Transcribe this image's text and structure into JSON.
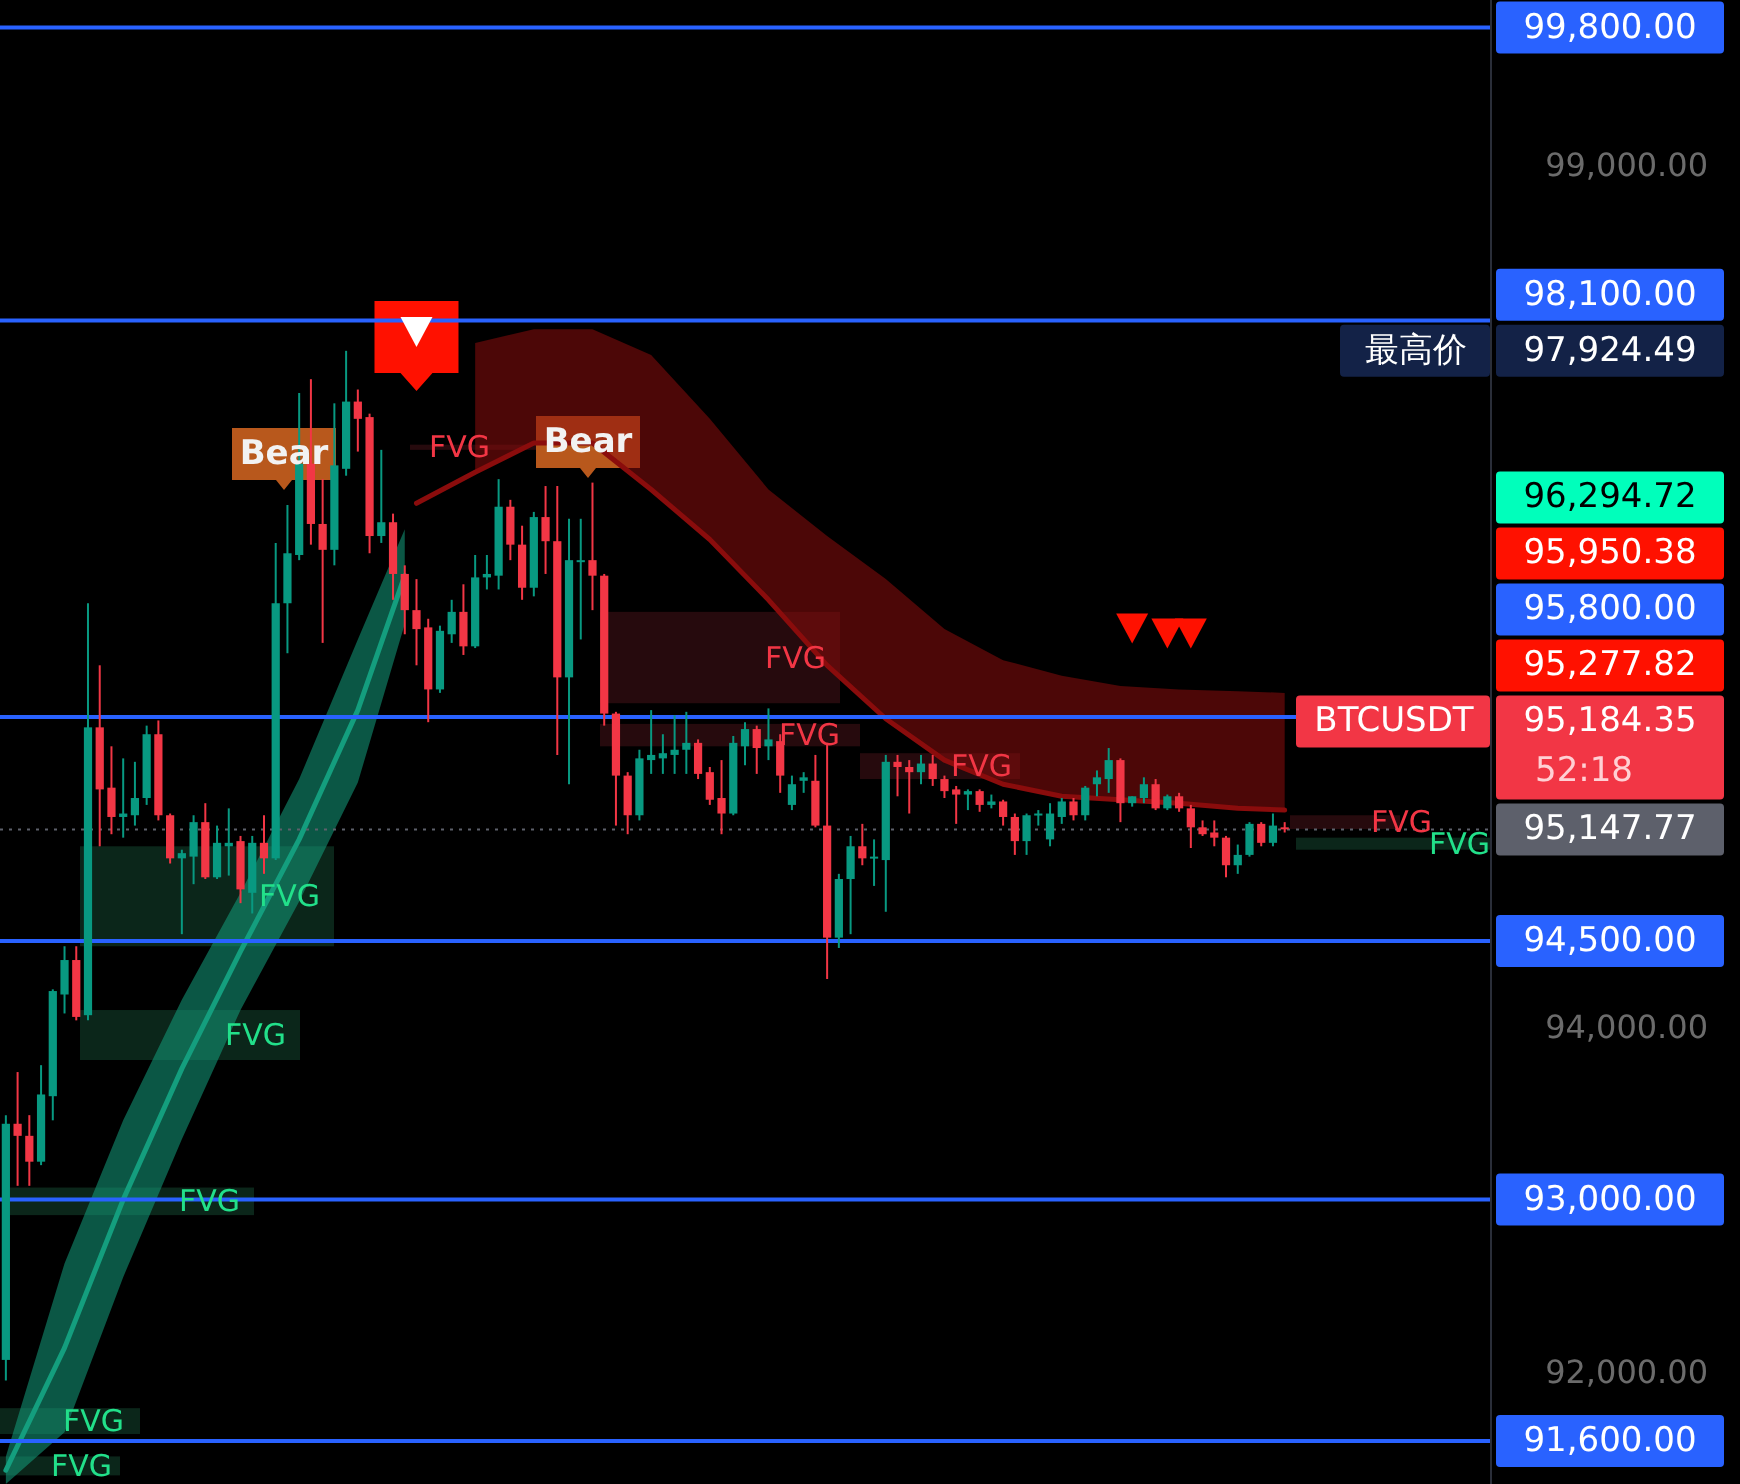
{
  "chart_data": {
    "type": "candlestick",
    "tick_labels": "y",
    "grid": false,
    "categories": [
      null,
      null,
      null,
      null,
      null,
      null,
      null,
      null,
      null,
      null,
      null,
      null,
      null,
      null,
      null,
      null,
      null,
      null,
      null,
      null,
      null,
      null,
      null,
      null,
      null,
      null,
      null,
      null,
      null,
      null,
      null,
      null,
      null,
      null,
      null,
      null,
      null,
      null,
      null,
      null,
      null,
      null,
      null,
      null,
      null,
      null,
      null,
      null,
      null,
      null,
      null,
      null,
      null,
      null,
      null,
      null,
      null,
      null,
      null,
      null,
      null,
      null,
      null,
      null,
      null,
      null,
      null,
      null,
      null,
      null,
      null,
      null,
      null,
      null,
      null,
      null,
      null,
      null,
      null,
      null,
      null,
      null,
      null,
      null,
      null,
      null,
      null,
      null,
      null,
      null,
      null,
      null,
      null,
      null,
      null,
      null,
      null,
      null,
      null,
      null,
      null,
      null,
      null,
      null,
      null,
      null,
      null,
      null,
      null,
      null,
      null,
      null,
      null,
      null,
      null,
      null,
      null,
      null,
      null,
      null,
      null,
      null,
      null,
      null,
      null,
      null,
      null
    ],
    "ohlc": [
      [
        92070,
        93490,
        91950,
        93440
      ],
      [
        93440,
        93740,
        93080,
        93370
      ],
      [
        93370,
        93490,
        93080,
        93220
      ],
      [
        93220,
        93780,
        93200,
        93610
      ],
      [
        93600,
        94220,
        93460,
        94210
      ],
      [
        94190,
        94470,
        94080,
        94390
      ],
      [
        94390,
        94470,
        94040,
        94060
      ],
      [
        94070,
        96460,
        94040,
        95740
      ],
      [
        95740,
        96100,
        95050,
        95380
      ],
      [
        95390,
        95630,
        95120,
        95220
      ],
      [
        95220,
        95560,
        95100,
        95240
      ],
      [
        95230,
        95540,
        95170,
        95330
      ],
      [
        95330,
        95750,
        95290,
        95700
      ],
      [
        95700,
        95780,
        95200,
        95230
      ],
      [
        95230,
        95240,
        94950,
        94980
      ],
      [
        94980,
        95030,
        94540,
        95010
      ],
      [
        94990,
        95230,
        94830,
        95190
      ],
      [
        95190,
        95300,
        94860,
        94870
      ],
      [
        94870,
        95170,
        94860,
        95070
      ],
      [
        95050,
        95270,
        94880,
        95070
      ],
      [
        95080,
        95110,
        94720,
        94800
      ],
      [
        94780,
        95110,
        94660,
        95070
      ],
      [
        95070,
        95230,
        94890,
        94980
      ],
      [
        94980,
        96810,
        94970,
        96460
      ],
      [
        96460,
        97030,
        96170,
        96750
      ],
      [
        96740,
        97680,
        96710,
        97270
      ],
      [
        97270,
        97760,
        96800,
        96920
      ],
      [
        96920,
        97180,
        96230,
        96770
      ],
      [
        96770,
        97620,
        96680,
        97260
      ],
      [
        97240,
        97924.49,
        97200,
        97630
      ],
      [
        97630,
        97700,
        97340,
        97530
      ],
      [
        97540,
        97560,
        96750,
        96850
      ],
      [
        96850,
        97350,
        96810,
        96930
      ],
      [
        96930,
        96980,
        96480,
        96630
      ],
      [
        96630,
        96680,
        96280,
        96420
      ],
      [
        96420,
        96600,
        96100,
        96310
      ],
      [
        96320,
        96370,
        95770,
        95960
      ],
      [
        95960,
        96330,
        95940,
        96300
      ],
      [
        96280,
        96480,
        96230,
        96410
      ],
      [
        96410,
        96570,
        96160,
        96210
      ],
      [
        96210,
        96740,
        96200,
        96610
      ],
      [
        96610,
        96740,
        96540,
        96630
      ],
      [
        96620,
        97180,
        96540,
        97020
      ],
      [
        97020,
        97060,
        96710,
        96800
      ],
      [
        96800,
        96910,
        96480,
        96550
      ],
      [
        96550,
        96990,
        96500,
        96960
      ],
      [
        96960,
        97140,
        96630,
        96820
      ],
      [
        96820,
        97140,
        95580,
        96030
      ],
      [
        96030,
        96950,
        95410,
        96710
      ],
      [
        96700,
        96950,
        96250,
        96710
      ],
      [
        96710,
        97160,
        96420,
        96620
      ],
      [
        96620,
        96630,
        95750,
        95820
      ],
      [
        95820,
        95830,
        95170,
        95460
      ],
      [
        95460,
        95480,
        95120,
        95230
      ],
      [
        95230,
        95610,
        95200,
        95560
      ],
      [
        95550,
        95840,
        95470,
        95580
      ],
      [
        95560,
        95700,
        95470,
        95590
      ],
      [
        95580,
        95810,
        95470,
        95610
      ],
      [
        95610,
        95830,
        95470,
        95650
      ],
      [
        95650,
        95670,
        95440,
        95470
      ],
      [
        95480,
        95510,
        95290,
        95320
      ],
      [
        95330,
        95550,
        95120,
        95240
      ],
      [
        95240,
        95690,
        95230,
        95650
      ],
      [
        95630,
        95770,
        95520,
        95730
      ],
      [
        95730,
        95750,
        95470,
        95620
      ],
      [
        95630,
        95850,
        95550,
        95670
      ],
      [
        95660,
        95700,
        95360,
        95460
      ],
      [
        95290,
        95460,
        95260,
        95410
      ],
      [
        95430,
        95480,
        95360,
        95450
      ],
      [
        95430,
        95580,
        95160,
        95170
      ],
      [
        95170,
        95650,
        94280,
        94520
      ],
      [
        94520,
        94890,
        94460,
        94860
      ],
      [
        94860,
        95110,
        94540,
        95050
      ],
      [
        95050,
        95180,
        94940,
        94980
      ],
      [
        94980,
        95090,
        94820,
        94990
      ],
      [
        94970,
        95580,
        94670,
        95540
      ],
      [
        95540,
        95580,
        95340,
        95510
      ],
      [
        95510,
        95550,
        95240,
        95480
      ],
      [
        95480,
        95580,
        95410,
        95530
      ],
      [
        95530,
        95580,
        95400,
        95440
      ],
      [
        95440,
        95460,
        95330,
        95370
      ],
      [
        95380,
        95400,
        95180,
        95350
      ],
      [
        95350,
        95380,
        95260,
        95370
      ],
      [
        95370,
        95380,
        95250,
        95290
      ],
      [
        95290,
        95350,
        95270,
        95310
      ],
      [
        95310,
        95320,
        95170,
        95220
      ],
      [
        95220,
        95240,
        95000,
        95080
      ],
      [
        95080,
        95240,
        95000,
        95230
      ],
      [
        95230,
        95260,
        95170,
        95240
      ],
      [
        95090,
        95300,
        95050,
        95240
      ],
      [
        95220,
        95330,
        95180,
        95310
      ],
      [
        95310,
        95330,
        95200,
        95230
      ],
      [
        95230,
        95400,
        95200,
        95390
      ],
      [
        95410,
        95490,
        95340,
        95450
      ],
      [
        95440,
        95620,
        95360,
        95550
      ],
      [
        95550,
        95560,
        95190,
        95300
      ],
      [
        95300,
        95340,
        95280,
        95340
      ],
      [
        95330,
        95450,
        95300,
        95410
      ],
      [
        95410,
        95440,
        95260,
        95270
      ],
      [
        95270,
        95350,
        95260,
        95340
      ],
      [
        95340,
        95360,
        95250,
        95270
      ],
      [
        95270,
        95290,
        95040,
        95160
      ],
      [
        95160,
        95200,
        95110,
        95120
      ],
      [
        95130,
        95200,
        95050,
        95100
      ],
      [
        95100,
        95110,
        94870,
        94940
      ],
      [
        94940,
        95060,
        94890,
        95000
      ],
      [
        95000,
        95190,
        94990,
        95180
      ],
      [
        95180,
        95190,
        95050,
        95070
      ],
      [
        95070,
        95240,
        95050,
        95170
      ],
      [
        95160,
        95190,
        95130,
        95150
      ],
      null,
      null,
      null,
      null,
      null,
      null,
      null,
      null,
      null,
      null,
      null,
      null,
      null,
      null,
      null,
      null,
      null
    ],
    "series": [
      {
        "type": "line",
        "color": "#149e7e",
        "values": [
          91430,
          null,
          null,
          null,
          null,
          92140,
          null,
          null,
          null,
          null,
          93000,
          null,
          null,
          null,
          null,
          93760,
          null,
          null,
          null,
          null,
          94440,
          null,
          null,
          null,
          null,
          95090,
          null,
          null,
          null,
          null,
          95840,
          null,
          null,
          null,
          96620,
          null,
          null,
          null,
          null,
          null,
          null,
          null,
          null,
          null,
          null,
          null,
          null,
          null,
          null,
          null,
          null,
          null,
          null,
          null,
          null,
          null,
          null,
          null,
          null,
          null,
          null,
          null,
          null,
          null,
          null,
          null,
          null,
          null,
          null,
          null,
          null,
          null,
          null,
          null,
          null,
          null,
          null,
          null,
          null,
          null,
          null,
          null,
          null,
          null,
          null,
          null,
          null,
          null,
          null,
          null,
          null,
          null,
          null,
          null,
          null,
          null,
          null,
          null,
          null,
          null,
          null,
          null,
          null,
          null,
          null,
          null,
          null,
          null,
          null,
          null,
          null,
          null,
          null,
          null,
          null,
          null,
          null,
          null,
          null,
          null,
          null,
          null,
          null,
          null,
          null,
          null,
          null
        ],
        "lower": [
          91350,
          null,
          null,
          null,
          null,
          91650,
          null,
          null,
          null,
          null,
          92550,
          null,
          null,
          null,
          null,
          93350,
          null,
          null,
          null,
          null,
          94100,
          null,
          null,
          null,
          null,
          94730,
          null,
          null,
          null,
          null,
          95420,
          null,
          null,
          null,
          96340,
          null,
          null,
          null,
          null,
          null,
          null,
          null,
          null,
          null,
          null,
          null,
          null,
          null,
          null,
          null,
          null,
          null,
          null,
          null,
          null,
          null,
          null,
          null,
          null,
          null,
          null,
          null,
          null,
          null,
          null,
          null,
          null,
          null,
          null,
          null,
          null,
          null,
          null,
          null,
          null,
          null,
          null,
          null,
          null,
          null,
          null,
          null,
          null,
          null,
          null,
          null,
          null,
          null,
          null,
          null,
          null,
          null,
          null,
          null,
          null,
          null,
          null,
          null,
          null,
          null,
          null,
          null,
          null,
          null,
          null,
          null,
          null,
          null,
          null,
          null,
          null,
          null,
          null,
          null,
          null,
          null,
          null,
          null,
          null,
          null,
          null,
          null,
          null,
          null,
          null,
          null,
          null
        ],
        "upper": [
          91510,
          null,
          null,
          null,
          null,
          92630,
          null,
          null,
          null,
          null,
          93460,
          null,
          null,
          null,
          null,
          94160,
          null,
          null,
          null,
          null,
          94780,
          null,
          null,
          null,
          null,
          95440,
          null,
          null,
          null,
          null,
          96250,
          null,
          null,
          null,
          96890,
          null,
          null,
          null,
          null,
          null,
          null,
          null,
          null,
          null,
          null,
          null,
          null,
          null,
          null,
          null,
          null,
          null,
          null,
          null,
          null,
          null,
          null,
          null,
          null,
          null,
          null,
          null,
          null,
          null,
          null,
          null,
          null,
          null,
          null,
          null,
          null,
          null,
          null,
          null,
          null,
          null,
          null,
          null,
          null,
          null,
          null,
          null,
          null,
          null,
          null,
          null,
          null,
          null,
          null,
          null,
          null,
          null,
          null,
          null,
          null,
          null,
          null,
          null,
          null,
          null,
          null,
          null,
          null,
          null,
          null,
          null,
          null,
          null,
          null,
          null,
          null,
          null,
          null,
          null,
          null,
          null,
          null,
          null,
          null,
          null,
          null,
          null,
          null,
          null,
          null,
          null,
          null
        ]
      },
      {
        "type": "line",
        "color": "#8a0c0c",
        "values": [
          null,
          null,
          null,
          null,
          null,
          null,
          null,
          null,
          null,
          null,
          null,
          null,
          null,
          null,
          null,
          null,
          null,
          null,
          null,
          null,
          null,
          null,
          null,
          null,
          null,
          null,
          null,
          null,
          null,
          null,
          null,
          null,
          null,
          null,
          null,
          97040,
          null,
          null,
          null,
          null,
          97220,
          null,
          null,
          null,
          null,
          97390,
          null,
          null,
          null,
          null,
          97390,
          null,
          null,
          null,
          null,
          97120,
          null,
          null,
          null,
          null,
          96830,
          null,
          null,
          null,
          null,
          96480,
          null,
          null,
          null,
          null,
          96100,
          null,
          null,
          null,
          null,
          95790,
          null,
          null,
          null,
          null,
          95550,
          null,
          null,
          null,
          null,
          95410,
          null,
          null,
          null,
          null,
          95340,
          null,
          null,
          null,
          null,
          95320,
          null,
          null,
          null,
          null,
          95300,
          null,
          null,
          null,
          null,
          95270,
          null,
          null,
          null,
          95260,
          null,
          null,
          null,
          null,
          null,
          null,
          null,
          null,
          null,
          null,
          null,
          null,
          null,
          null,
          null,
          null,
          null
        ],
        "lower": [
          null,
          null,
          null,
          null,
          null,
          null,
          null,
          null,
          null,
          null,
          null,
          null,
          null,
          null,
          null,
          null,
          null,
          null,
          null,
          null,
          null,
          null,
          null,
          null,
          null,
          null,
          null,
          null,
          null,
          null,
          null,
          null,
          null,
          null,
          null,
          null,
          null,
          null,
          null,
          null,
          97220,
          null,
          null,
          null,
          null,
          97390,
          null,
          null,
          null,
          null,
          97390,
          null,
          null,
          null,
          null,
          97120,
          null,
          null,
          null,
          null,
          96830,
          null,
          null,
          null,
          null,
          96480,
          null,
          null,
          null,
          null,
          96100,
          null,
          null,
          null,
          null,
          95790,
          null,
          null,
          null,
          null,
          95550,
          null,
          null,
          null,
          null,
          95410,
          null,
          null,
          null,
          null,
          95340,
          null,
          null,
          null,
          null,
          95320,
          null,
          null,
          null,
          null,
          95300,
          null,
          null,
          null,
          null,
          95270,
          null,
          null,
          null,
          95260,
          null,
          null,
          null,
          null,
          null,
          null,
          null,
          null,
          null,
          null,
          null,
          null,
          null,
          null,
          null,
          null,
          null
        ],
        "upper": [
          null,
          null,
          null,
          null,
          null,
          null,
          null,
          null,
          null,
          null,
          null,
          null,
          null,
          null,
          null,
          null,
          null,
          null,
          null,
          null,
          null,
          null,
          null,
          null,
          null,
          null,
          null,
          null,
          null,
          null,
          null,
          null,
          null,
          null,
          null,
          null,
          null,
          null,
          null,
          null,
          97970,
          null,
          null,
          null,
          null,
          98050,
          null,
          null,
          null,
          null,
          98050,
          null,
          null,
          null,
          null,
          97900,
          null,
          null,
          null,
          null,
          97530,
          null,
          null,
          null,
          null,
          97120,
          null,
          null,
          null,
          null,
          96850,
          null,
          null,
          null,
          null,
          96600,
          null,
          null,
          null,
          null,
          96310,
          null,
          null,
          null,
          null,
          96130,
          null,
          null,
          null,
          null,
          96040,
          null,
          null,
          null,
          null,
          95980,
          null,
          null,
          null,
          null,
          95960,
          null,
          null,
          null,
          null,
          95950,
          null,
          null,
          null,
          95940,
          null,
          null,
          null,
          null,
          null,
          null,
          null,
          null,
          null,
          null,
          null,
          null,
          null,
          null,
          null,
          null,
          null
        ]
      },
      {
        "type": "scatter",
        "marker": "triangle",
        "color": "#ffffff",
        "values": [
          null,
          null,
          null,
          null,
          null,
          null,
          null,
          null,
          null,
          null,
          null,
          null,
          null,
          null,
          null,
          null,
          null,
          null,
          null,
          null,
          null,
          null,
          null,
          null,
          null,
          null,
          null,
          null,
          null,
          null,
          null,
          null,
          null,
          null,
          null,
          98040,
          null,
          null,
          null,
          null,
          null,
          null,
          null,
          null,
          null,
          null,
          null,
          null,
          null,
          null,
          null,
          null,
          null,
          null,
          null,
          null,
          null,
          null,
          null,
          null,
          null,
          null,
          null,
          null,
          null,
          null,
          null,
          null,
          null,
          null,
          null,
          null,
          null,
          null,
          null,
          null,
          null,
          null,
          null,
          null,
          null,
          null,
          null,
          null,
          null,
          null,
          null,
          null,
          null,
          null,
          null,
          null,
          null,
          null,
          null,
          null,
          null,
          null,
          null,
          null,
          null,
          null,
          null,
          null,
          null,
          null,
          null,
          null,
          null,
          null,
          null,
          null,
          null,
          null,
          null,
          null,
          null,
          null,
          null,
          null,
          null,
          null,
          null,
          null,
          null,
          null,
          null
        ]
      },
      {
        "type": "scatter",
        "marker": "triangle",
        "color": "#ff1100",
        "values": [
          null,
          null,
          null,
          null,
          null,
          null,
          null,
          null,
          null,
          null,
          null,
          null,
          null,
          null,
          null,
          null,
          null,
          null,
          null,
          null,
          null,
          null,
          null,
          null,
          null,
          null,
          null,
          null,
          null,
          null,
          null,
          null,
          null,
          null,
          null,
          null,
          null,
          null,
          null,
          null,
          null,
          null,
          null,
          null,
          null,
          null,
          null,
          null,
          null,
          null,
          null,
          null,
          null,
          null,
          null,
          null,
          null,
          null,
          null,
          null,
          null,
          null,
          null,
          null,
          null,
          null,
          null,
          null,
          null,
          null,
          null,
          null,
          null,
          null,
          null,
          null,
          null,
          null,
          null,
          null,
          null,
          null,
          null,
          null,
          null,
          null,
          null,
          null,
          null,
          null,
          null,
          null,
          null,
          null,
          null,
          null,
          96320,
          null,
          null,
          96290,
          null,
          96290,
          null,
          null,
          null,
          null,
          null,
          null,
          null,
          null,
          null,
          null,
          null,
          null,
          null,
          null,
          null,
          null,
          null,
          null,
          null,
          null,
          null,
          null,
          null,
          null,
          null
        ]
      }
    ],
    "ylim": [
      91350,
      99960
    ],
    "yticks": [
      {
        "value": 92000,
        "label": "92,000.00"
      },
      {
        "value": 94000,
        "label": "94,000.00"
      },
      {
        "value": 99000,
        "label": "99,000.00"
      }
    ],
    "ref_lines": [
      {
        "axis": "y",
        "value": 99800,
        "label": "99,800.00",
        "color": "#2962ff"
      },
      {
        "axis": "y",
        "value": 98100,
        "label": "98,100.00",
        "color": "#2962ff"
      },
      {
        "axis": "y",
        "value": 95800,
        "label": "95,800.00",
        "color": "#2962ff"
      },
      {
        "axis": "y",
        "value": 94500,
        "label": "94,500.00",
        "color": "#2962ff"
      },
      {
        "axis": "y",
        "value": 93000,
        "label": "93,000.00",
        "color": "#2962ff"
      },
      {
        "axis": "y",
        "value": 91600,
        "label": "91,600.00",
        "color": "#2962ff"
      },
      {
        "axis": "y",
        "value": 95147.77,
        "label": "95,147.77",
        "color": "#5d606b",
        "line_style": "dotted"
      }
    ],
    "bands": [
      {
        "axis": "y",
        "from": 97350,
        "to": 97380,
        "label": "FVG",
        "color": "#2a0b0e"
      },
      {
        "axis": "y",
        "from": 95880,
        "to": 96410,
        "label": "FVG",
        "color": "#2a0b0e"
      },
      {
        "axis": "y",
        "from": 95630,
        "to": 95760,
        "label": "FVG",
        "color": "#2a0b0e"
      },
      {
        "axis": "y",
        "from": 95440,
        "to": 95590,
        "label": "FVG",
        "color": "#2a0b0e"
      },
      {
        "axis": "y",
        "from": 95150,
        "to": 95230,
        "label": "FVG",
        "color": "#2a0b0e"
      },
      {
        "axis": "y",
        "from": 94470,
        "to": 95050,
        "label": "FVG",
        "color": "#0c2a1d"
      },
      {
        "axis": "y",
        "from": 93810,
        "to": 94100,
        "label": "FVG",
        "color": "#0c2a1d"
      },
      {
        "axis": "y",
        "from": 92910,
        "to": 93070,
        "label": "FVG",
        "color": "#0c2a1d"
      },
      {
        "axis": "y",
        "from": 91640,
        "to": 91790,
        "label": "FVG",
        "color": "#0c2a1d"
      },
      {
        "axis": "y",
        "from": 91400,
        "to": 91510,
        "label": "FVG",
        "color": "#0c2a1d"
      },
      {
        "axis": "y",
        "from": 95030,
        "to": 95100,
        "label": "FVG",
        "color": "#0c2a1d"
      }
    ],
    "annotations": [
      "最高价",
      "97,924.49",
      "96,294.72",
      "95,950.38",
      "95,277.82",
      "BTCUSDT",
      "95,184.35",
      "52:18",
      "Bear",
      "Bear"
    ]
  }
}
